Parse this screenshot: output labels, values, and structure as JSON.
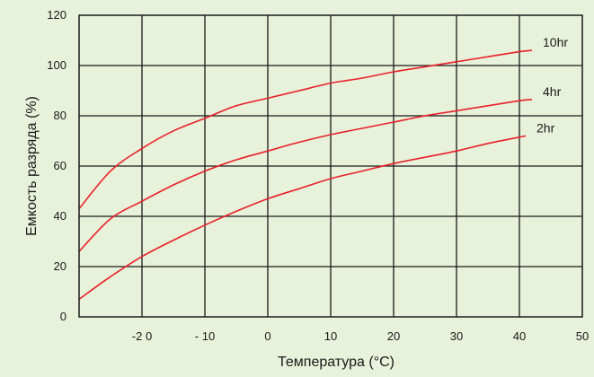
{
  "background_color": "#e8f1d9",
  "chart_data": {
    "type": "line",
    "xlabel": "Температура (°C)",
    "ylabel": "Емкость разряда (%)",
    "xlim": [
      -30,
      50
    ],
    "ylim": [
      0,
      120
    ],
    "x_ticks": [
      -20,
      -10,
      0,
      10,
      20,
      30,
      40,
      50
    ],
    "x_tick_labels": [
      "-2 0",
      "- 10",
      "0",
      "10",
      "20",
      "30",
      "40",
      "50"
    ],
    "y_ticks": [
      0,
      20,
      40,
      60,
      80,
      100,
      120
    ],
    "y_tick_labels": [
      "0",
      "20",
      "40",
      "60",
      "80",
      "100",
      "120"
    ],
    "grid": true,
    "line_color": "#e8202a",
    "series": [
      {
        "name": "10hr",
        "x": [
          -30,
          -25,
          -20,
          -15,
          -10,
          -5,
          0,
          5,
          10,
          15,
          20,
          25,
          30,
          35,
          40,
          42
        ],
        "y": [
          43,
          58,
          67,
          74,
          79,
          84,
          87,
          90,
          93,
          95,
          97.5,
          99.5,
          101.5,
          103.5,
          105.5,
          106
        ]
      },
      {
        "name": "4hr",
        "x": [
          -30,
          -25,
          -20,
          -15,
          -10,
          -5,
          0,
          5,
          10,
          15,
          20,
          25,
          30,
          35,
          40,
          42
        ],
        "y": [
          26,
          39,
          46,
          52.5,
          58,
          62.5,
          66,
          69.5,
          72.5,
          75,
          77.5,
          80,
          82,
          84,
          86,
          86.5
        ]
      },
      {
        "name": "2hr",
        "x": [
          -30,
          -25,
          -20,
          -15,
          -10,
          -5,
          0,
          5,
          10,
          15,
          20,
          25,
          30,
          35,
          40,
          41
        ],
        "y": [
          7,
          16,
          24,
          30.5,
          36.5,
          42,
          47,
          51,
          55,
          58,
          61,
          63.5,
          66,
          69,
          71.5,
          72
        ]
      }
    ]
  }
}
